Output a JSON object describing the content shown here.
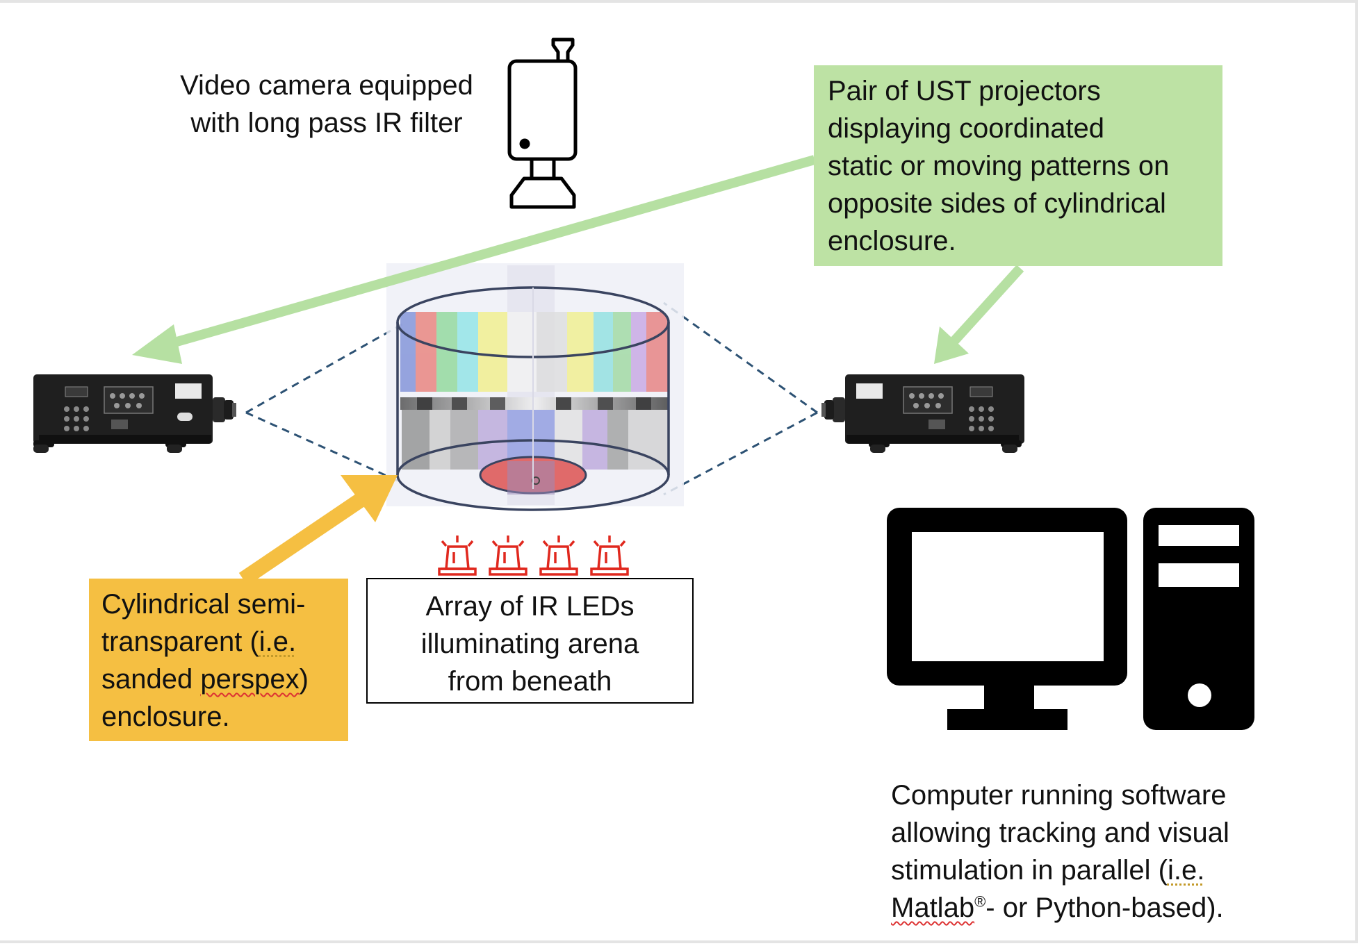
{
  "labels": {
    "camera_line1": "Video camera equipped",
    "camera_line2": "with long pass IR filter",
    "projectors_line1": "Pair of UST projectors",
    "projectors_line2": "displaying coordinated",
    "projectors_line3": "static or moving patterns on",
    "projectors_line4": "opposite sides of cylindrical",
    "projectors_line5": "enclosure.",
    "led_line1": "Array of IR LEDs",
    "led_line2": "illuminating arena",
    "led_line3": "from beneath",
    "enclosure_line1": "Cylindrical semi-",
    "enclosure_line2a": "transparent (",
    "enclosure_line2b": "i.e.",
    "enclosure_line3a": "sanded ",
    "enclosure_line3b": "perspex",
    "enclosure_line3c": ")",
    "enclosure_line4": "enclosure.",
    "computer_line1": "Computer running software",
    "computer_line2": "allowing tracking and visual",
    "computer_line3a": "stimulation in parallel (",
    "computer_line3b": "i.e.",
    "computer_line4a": "Matlab",
    "computer_line4b": "®",
    "computer_line4c": "- or Python-based)."
  },
  "colors": {
    "green_box": "#bde2a4",
    "green_arrow": "#b6e0a2",
    "yellow_box": "#f5bf42",
    "yellow_arrow": "#f5bf42",
    "dashed_line": "#2d5274",
    "led_red": "#e0281e",
    "projector_body": "#222222",
    "ink": "#000000"
  },
  "icons": {
    "camera": "video-camera-icon",
    "projector": "projector-icon",
    "led": "ir-led-icon",
    "computer": "desktop-computer-icon"
  }
}
